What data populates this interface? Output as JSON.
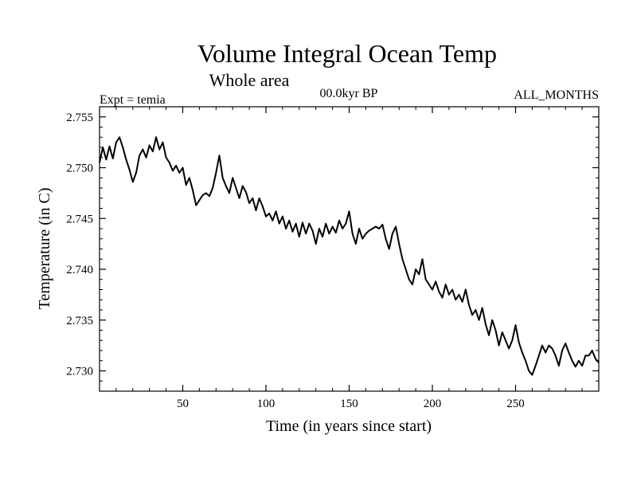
{
  "chart_data": {
    "type": "line",
    "title": "Volume Integral Ocean Temp",
    "subtitle": "Whole area",
    "info_left": "Expt = temia",
    "info_center": "00.0kyr BP",
    "info_right": "ALL_MONTHS",
    "xlabel": "Time (in years since start)",
    "ylabel": "Temperature (in C)",
    "xlim": [
      0,
      300
    ],
    "ylim": [
      2.728,
      2.756
    ],
    "xticks": [
      50,
      100,
      150,
      200,
      250
    ],
    "xtick_labels": [
      "50",
      "100",
      "150",
      "200",
      "250"
    ],
    "yticks": [
      2.73,
      2.735,
      2.74,
      2.745,
      2.75,
      2.755
    ],
    "ytick_labels": [
      "2.730",
      "2.735",
      "2.740",
      "2.745",
      "2.750",
      "2.755"
    ],
    "grid": false,
    "series": [
      {
        "name": "Temperature",
        "x": [
          0,
          2,
          4,
          6,
          8,
          10,
          12,
          14,
          16,
          18,
          20,
          22,
          24,
          26,
          28,
          30,
          32,
          34,
          36,
          38,
          40,
          42,
          44,
          46,
          48,
          50,
          52,
          54,
          56,
          58,
          60,
          62,
          64,
          66,
          68,
          70,
          72,
          74,
          76,
          78,
          80,
          82,
          84,
          86,
          88,
          90,
          92,
          94,
          96,
          98,
          100,
          102,
          104,
          106,
          108,
          110,
          112,
          114,
          116,
          118,
          120,
          122,
          124,
          126,
          128,
          130,
          132,
          134,
          136,
          138,
          140,
          142,
          144,
          146,
          148,
          150,
          152,
          154,
          156,
          158,
          160,
          162,
          164,
          166,
          168,
          170,
          172,
          174,
          176,
          178,
          180,
          182,
          184,
          186,
          188,
          190,
          192,
          194,
          196,
          198,
          200,
          202,
          204,
          206,
          208,
          210,
          212,
          214,
          216,
          218,
          220,
          222,
          224,
          226,
          228,
          230,
          232,
          234,
          236,
          238,
          240,
          242,
          244,
          246,
          248,
          250,
          252,
          254,
          256,
          258,
          260,
          262,
          264,
          266,
          268,
          270,
          272,
          274,
          276,
          278,
          280,
          282,
          284,
          286,
          288,
          290,
          292,
          294,
          296,
          298,
          300
        ],
        "values": [
          2.7505,
          2.752,
          2.7508,
          2.7521,
          2.7509,
          2.7525,
          2.753,
          2.752,
          2.7508,
          2.7498,
          2.7486,
          2.7495,
          2.7512,
          2.7518,
          2.751,
          2.7522,
          2.7516,
          2.753,
          2.7518,
          2.7525,
          2.751,
          2.7505,
          2.7497,
          2.7502,
          2.7495,
          2.75,
          2.7483,
          2.749,
          2.7478,
          2.7463,
          2.7468,
          2.7473,
          2.7475,
          2.7472,
          2.748,
          2.7495,
          2.7512,
          2.749,
          2.7482,
          2.7475,
          2.749,
          2.748,
          2.747,
          2.7482,
          2.7476,
          2.7465,
          2.747,
          2.7458,
          2.747,
          2.7462,
          2.7452,
          2.7455,
          2.7448,
          2.7457,
          2.7445,
          2.7452,
          2.744,
          2.7448,
          2.7437,
          2.7445,
          2.7432,
          2.7446,
          2.7435,
          2.7445,
          2.7438,
          2.7425,
          2.744,
          2.7432,
          2.7445,
          2.7435,
          2.7442,
          2.7436,
          2.7448,
          2.744,
          2.7445,
          2.7457,
          2.7435,
          2.7425,
          2.744,
          2.743,
          2.7435,
          2.7438,
          2.744,
          2.7442,
          2.744,
          2.7444,
          2.743,
          2.742,
          2.7435,
          2.7442,
          2.7425,
          2.741,
          2.74,
          2.739,
          2.7385,
          2.74,
          2.7395,
          2.741,
          2.739,
          2.7385,
          2.738,
          2.7388,
          2.7378,
          2.7372,
          2.7385,
          2.7375,
          2.738,
          2.737,
          2.7375,
          2.7368,
          2.738,
          2.7365,
          2.7355,
          2.736,
          2.735,
          2.7362,
          2.7346,
          2.7335,
          2.735,
          2.734,
          2.7325,
          2.7338,
          2.733,
          2.7322,
          2.733,
          2.7345,
          2.7328,
          2.7318,
          2.731,
          2.73,
          2.7296,
          2.7305,
          2.7315,
          2.7325,
          2.7318,
          2.7325,
          2.7322,
          2.7315,
          2.7305,
          2.732,
          2.7327,
          2.7318,
          2.731,
          2.7304,
          2.731,
          2.7305,
          2.7315,
          2.7315,
          2.732,
          2.7312,
          2.7308
        ]
      }
    ]
  }
}
